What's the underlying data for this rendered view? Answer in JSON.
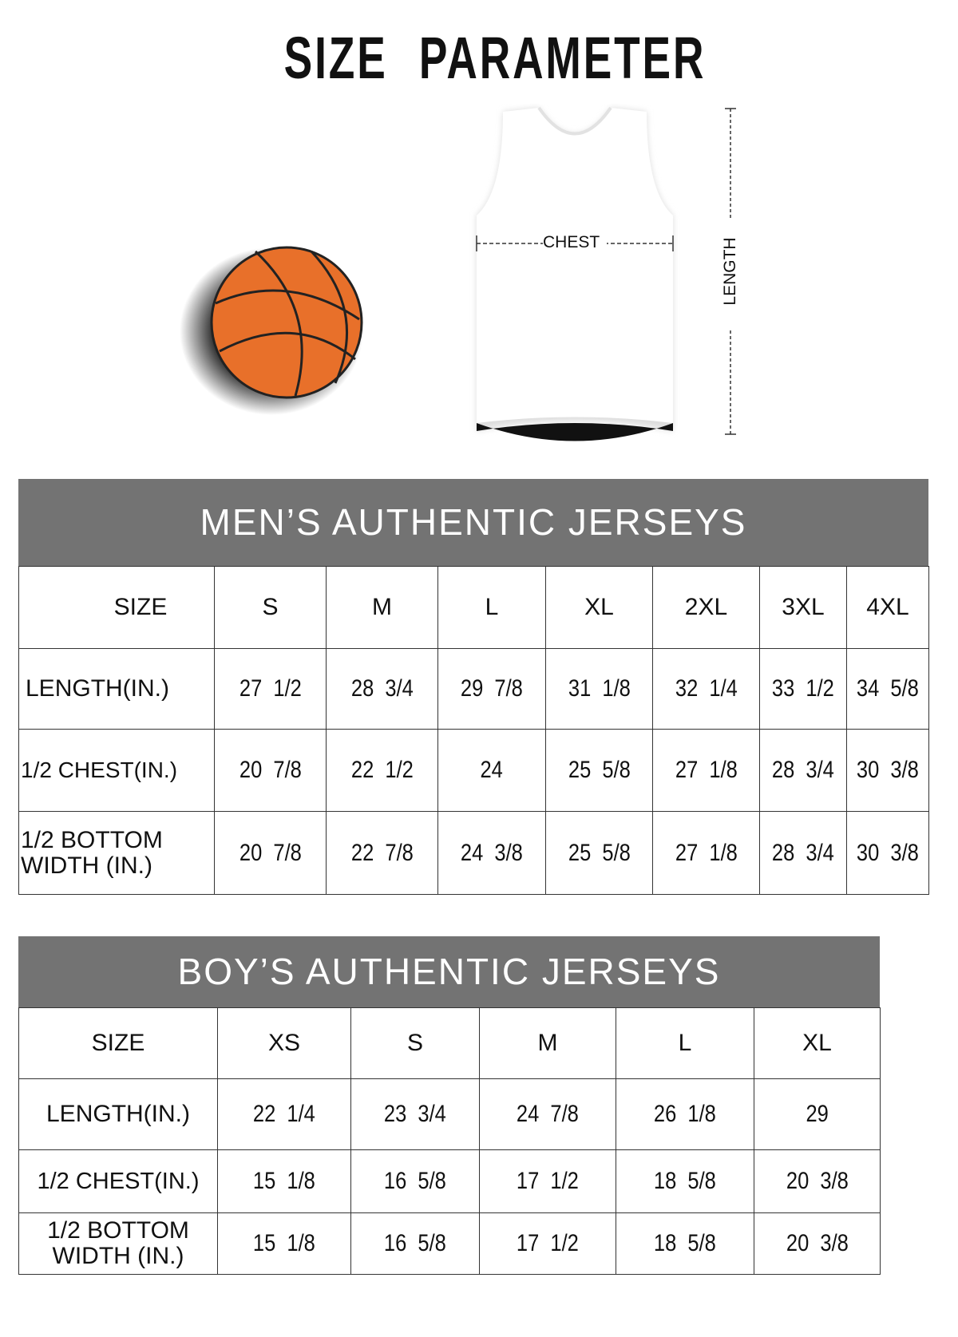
{
  "title": "SIZE PARAMETER",
  "diagram": {
    "chest_label": "CHEST",
    "length_label": "LENGTH",
    "ball_color": "#E8702A",
    "band_color": "#737373"
  },
  "mens": {
    "title": "MEN’S AUTHENTIC JERSEYS",
    "headers": [
      "SIZE",
      "S",
      "M",
      "L",
      "XL",
      "2XL",
      "3XL",
      "4XL"
    ],
    "rows": [
      [
        "LENGTH(IN.)",
        "27  1/2",
        "28  3/4",
        "29  7/8",
        "31  1/8",
        "32  1/4",
        "33  1/2",
        "34  5/8"
      ],
      [
        "1/2 CHEST(IN.)",
        "20  7/8",
        "22  1/2",
        "24",
        "25  5/8",
        "27  1/8",
        "28  3/4",
        "30  3/8"
      ],
      [
        "1/2 BOTTOM WIDTH  (IN.)",
        "20  7/8",
        "22  7/8",
        "24  3/8",
        "25  5/8",
        "27  1/8",
        "28  3/4",
        "30  3/8"
      ]
    ]
  },
  "boys": {
    "title": "BOY’S AUTHENTIC JERSEYS",
    "headers": [
      "SIZE",
      "XS",
      "S",
      "M",
      "L",
      "XL"
    ],
    "rows": [
      [
        "LENGTH(IN.)",
        "22  1/4",
        "23  3/4",
        "24  7/8",
        "26  1/8",
        "29"
      ],
      [
        "1/2 CHEST(IN.)",
        "15  1/8",
        "16  5/8",
        "17  1/2",
        "18  5/8",
        "20  3/8"
      ],
      [
        "1/2 BOTTOM WIDTH  (IN.)",
        "15  1/8",
        "16  5/8",
        "17  1/2",
        "18  5/8",
        "20  3/8"
      ]
    ]
  }
}
